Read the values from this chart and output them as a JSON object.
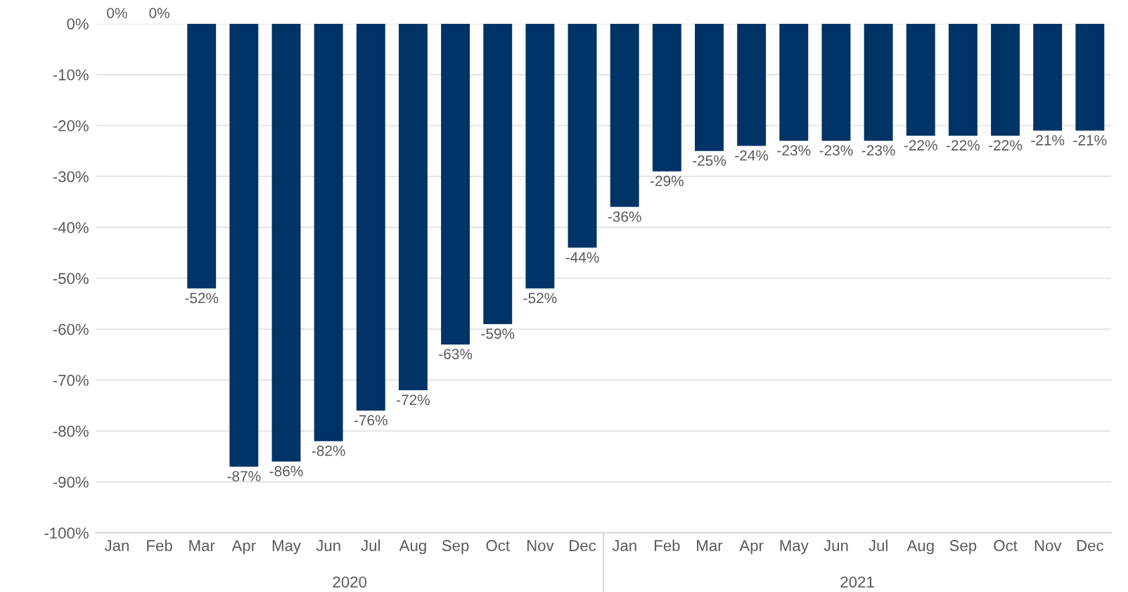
{
  "chart_data": {
    "type": "bar",
    "categories": [
      "Jan",
      "Feb",
      "Mar",
      "Apr",
      "May",
      "Jun",
      "Jul",
      "Aug",
      "Sep",
      "Oct",
      "Nov",
      "Dec",
      "Jan",
      "Feb",
      "Mar",
      "Apr",
      "May",
      "Jun",
      "Jul",
      "Aug",
      "Sep",
      "Oct",
      "Nov",
      "Dec"
    ],
    "values": [
      0,
      0,
      -52,
      -87,
      -86,
      -82,
      -76,
      -72,
      -63,
      -59,
      -52,
      -44,
      -36,
      -29,
      -25,
      -24,
      -23,
      -23,
      -23,
      -22,
      -22,
      -22,
      -21,
      -21
    ],
    "value_labels": [
      "0%",
      "0%",
      "-52%",
      "-87%",
      "-86%",
      "-82%",
      "-76%",
      "-72%",
      "-63%",
      "-59%",
      "-52%",
      "-44%",
      "-36%",
      "-29%",
      "-25%",
      "-24%",
      "-23%",
      "-23%",
      "-23%",
      "-22%",
      "-22%",
      "-22%",
      "-21%",
      "-21%"
    ],
    "color": "#003366",
    "ylim": [
      -100,
      0
    ],
    "yticks": [
      {
        "value": 0,
        "label": "0%"
      },
      {
        "value": -10,
        "label": "-10%"
      },
      {
        "value": -20,
        "label": "-20%"
      },
      {
        "value": -30,
        "label": "-30%"
      },
      {
        "value": -40,
        "label": "-40%"
      },
      {
        "value": -50,
        "label": "-50%"
      },
      {
        "value": -60,
        "label": "-60%"
      },
      {
        "value": -70,
        "label": "-70%"
      },
      {
        "value": -80,
        "label": "-80%"
      },
      {
        "value": -90,
        "label": "-90%"
      },
      {
        "value": -100,
        "label": "-100%"
      }
    ],
    "grid": "y",
    "annotations": [
      "2020",
      "2021"
    ]
  }
}
